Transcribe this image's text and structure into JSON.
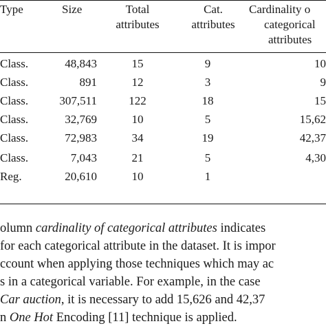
{
  "table": {
    "headers": {
      "type": "Type",
      "size": "Size",
      "total_line1": "Total",
      "total_line2": "attributes",
      "cat_line1": "Cat.",
      "cat_line2": "attributes",
      "card_line1": "Cardinality o",
      "card_line2": "categorical",
      "card_line3": "attributes"
    },
    "rows": [
      {
        "type": "Class.",
        "size": "48,843",
        "total": "15",
        "cat": "9",
        "card": "10"
      },
      {
        "type": "Class.",
        "size": "891",
        "total": "12",
        "cat": "3",
        "card": "9"
      },
      {
        "type": "Class.",
        "size": "307,511",
        "total": "122",
        "cat": "18",
        "card": "15"
      },
      {
        "type": "Class.",
        "size": "32,769",
        "total": "10",
        "cat": "5",
        "card": "15,62"
      },
      {
        "type": "Class.",
        "size": "72,983",
        "total": "34",
        "cat": "19",
        "card": "42,37"
      },
      {
        "type": "Class.",
        "size": "7,043",
        "total": "21",
        "cat": "5",
        "card": "4,30"
      },
      {
        "type": "Reg.",
        "size": "20,610",
        "total": "10",
        "cat": "1",
        "card": ""
      }
    ]
  },
  "paragraph": {
    "line1_a": "olumn ",
    "line1_italic": "cardinality of categorical attributes",
    "line1_b": " indicates",
    "line2": "for each categorical attribute in the dataset. It is impor",
    "line3": "ccount when applying those techniques which may ac",
    "line4": "s in a categorical variable. For example, in the case",
    "line5_italic": "Car auction",
    "line5_b": ", it is necessary to add 15,626 and 42,37",
    "line6_a": "n ",
    "line6_italic": "One Hot",
    "line6_b": " Encoding [11] technique is applied."
  }
}
